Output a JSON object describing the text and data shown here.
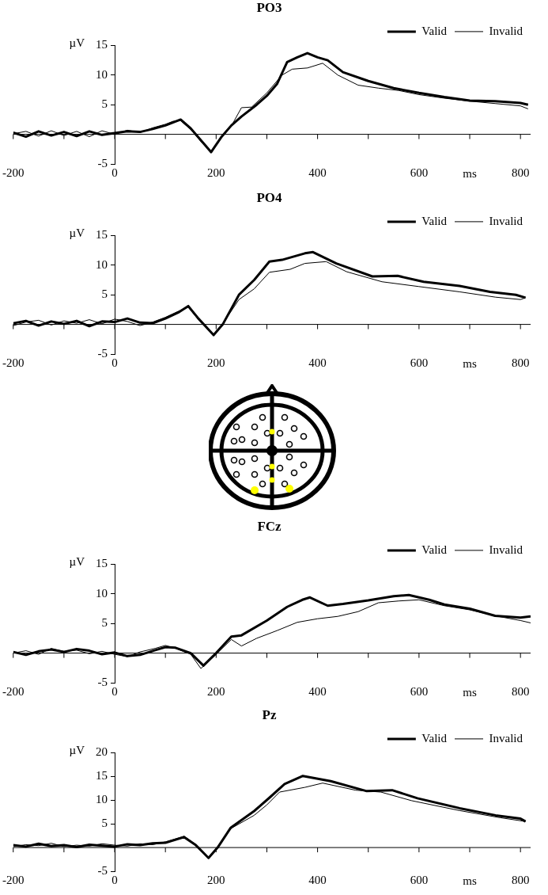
{
  "chart_data": [
    {
      "type": "line",
      "title": "PO3",
      "xlabel": "ms",
      "ylabel": "µV",
      "xlim": [
        -200,
        820
      ],
      "xticks": [
        -200,
        {
          "value": -100,
          "label": null
        },
        0,
        {
          "value": 100,
          "label": null
        },
        200,
        {
          "value": 300,
          "label": null
        },
        400,
        {
          "value": 500,
          "label": null
        },
        600,
        {
          "value": 700,
          "label": null
        },
        800
      ],
      "ylim": [
        -5,
        15
      ],
      "yticks": [
        -5,
        5,
        10,
        15
      ],
      "legend": "top right",
      "series": [
        {
          "name": "Valid",
          "color": "#000000",
          "x": [
            -200,
            -175,
            -150,
            -125,
            -100,
            -75,
            -50,
            -25,
            0,
            25,
            50,
            75,
            100,
            115,
            130,
            150,
            175,
            190,
            210,
            230,
            250,
            280,
            300,
            320,
            340,
            360,
            380,
            400,
            420,
            450,
            500,
            550,
            600,
            650,
            700,
            750,
            800,
            815
          ],
          "values": [
            0.3,
            -0.4,
            0.5,
            -0.2,
            0.4,
            -0.3,
            0.5,
            -0.1,
            0.2,
            0.5,
            0.4,
            0.9,
            1.5,
            2.0,
            2.5,
            1.0,
            -1.5,
            -3.0,
            -0.5,
            1.5,
            3.0,
            5.0,
            6.5,
            8.5,
            12.2,
            13.0,
            13.7,
            13.0,
            12.5,
            10.5,
            9.0,
            7.8,
            7.0,
            6.3,
            5.7,
            5.6,
            5.3,
            5.0
          ]
        },
        {
          "name": "Invalid",
          "color": "#000000",
          "x": [
            -200,
            -175,
            -150,
            -125,
            -100,
            -75,
            -50,
            -25,
            0,
            25,
            50,
            75,
            100,
            115,
            130,
            150,
            175,
            190,
            210,
            230,
            250,
            270,
            300,
            330,
            350,
            380,
            410,
            440,
            480,
            520,
            560,
            600,
            650,
            700,
            750,
            800,
            815
          ],
          "values": [
            0.1,
            0.5,
            -0.3,
            0.6,
            -0.2,
            0.5,
            -0.4,
            0.6,
            0.0,
            0.7,
            0.3,
            1.1,
            1.7,
            2.2,
            2.3,
            0.8,
            -1.7,
            -3.0,
            -0.6,
            1.4,
            4.5,
            4.6,
            7.0,
            10.0,
            11.0,
            11.2,
            12.0,
            10.0,
            8.3,
            7.8,
            7.4,
            6.7,
            6.1,
            5.6,
            5.2,
            4.8,
            4.3
          ]
        }
      ]
    },
    {
      "type": "line",
      "title": "PO4",
      "xlabel": "ms",
      "ylabel": "µV",
      "xlim": [
        -200,
        820
      ],
      "xticks": [
        -200,
        {
          "value": -100,
          "label": null
        },
        0,
        {
          "value": 100,
          "label": null
        },
        200,
        {
          "value": 300,
          "label": null
        },
        400,
        {
          "value": 500,
          "label": null
        },
        600,
        {
          "value": 700,
          "label": null
        },
        800
      ],
      "ylim": [
        -5,
        15
      ],
      "yticks": [
        -5,
        5,
        10,
        15
      ],
      "legend": "top right",
      "series": [
        {
          "name": "Valid",
          "color": "#000000",
          "x": [
            -200,
            -175,
            -150,
            -125,
            -100,
            -75,
            -50,
            -25,
            0,
            25,
            50,
            75,
            100,
            125,
            145,
            165,
            195,
            213,
            245,
            275,
            305,
            330,
            375,
            391,
            437,
            508,
            558,
            609,
            680,
            740,
            791,
            810
          ],
          "values": [
            0.2,
            0.6,
            -0.2,
            0.5,
            0.1,
            0.6,
            -0.3,
            0.5,
            0.4,
            1.0,
            0.3,
            0.2,
            1.0,
            2.0,
            3.1,
            1.0,
            -1.8,
            0.0,
            5.0,
            7.5,
            10.6,
            10.9,
            12.0,
            12.2,
            10.3,
            8.1,
            8.2,
            7.2,
            6.5,
            5.5,
            5.0,
            4.5
          ]
        },
        {
          "name": "Invalid",
          "color": "#000000",
          "x": [
            -200,
            -175,
            -150,
            -125,
            -100,
            -75,
            -50,
            -25,
            0,
            25,
            50,
            75,
            100,
            125,
            145,
            165,
            195,
            213,
            245,
            275,
            305,
            346,
            375,
            417,
            457,
            527,
            599,
            680,
            751,
            800,
            810
          ],
          "values": [
            -0.2,
            0.4,
            0.7,
            -0.1,
            0.6,
            0.2,
            0.8,
            0.1,
            0.9,
            0.5,
            -0.2,
            0.4,
            1.2,
            2.2,
            2.9,
            0.8,
            -1.7,
            0.1,
            4.2,
            6.0,
            8.8,
            9.3,
            10.3,
            10.6,
            8.9,
            7.2,
            6.4,
            5.5,
            4.6,
            4.2,
            4.5
          ]
        }
      ]
    },
    {
      "type": "line",
      "title": "FCz",
      "xlabel": "ms",
      "ylabel": "µV",
      "xlim": [
        -200,
        820
      ],
      "xticks": [
        -200,
        {
          "value": -100,
          "label": null
        },
        0,
        {
          "value": 100,
          "label": null
        },
        200,
        {
          "value": 300,
          "label": null
        },
        400,
        {
          "value": 500,
          "label": null
        },
        600,
        {
          "value": 700,
          "label": null
        },
        800
      ],
      "ylim": [
        -5,
        15
      ],
      "yticks": [
        -5,
        5,
        10,
        15
      ],
      "legend": "top right",
      "series": [
        {
          "name": "Valid",
          "color": "#000000",
          "x": [
            -200,
            -175,
            -150,
            -125,
            -100,
            -75,
            -50,
            -25,
            0,
            25,
            50,
            80,
            100,
            120,
            150,
            175,
            200,
            230,
            250,
            300,
            340,
            370,
            385,
            420,
            450,
            500,
            550,
            580,
            620,
            650,
            700,
            750,
            800,
            820
          ],
          "values": [
            0.2,
            -0.3,
            0.3,
            0.6,
            0.2,
            0.7,
            0.4,
            -0.2,
            0.1,
            -0.5,
            -0.3,
            0.5,
            1.0,
            0.9,
            0.0,
            -2.1,
            0.0,
            2.8,
            3.0,
            5.5,
            7.8,
            9.0,
            9.4,
            8.0,
            8.3,
            8.9,
            9.6,
            9.8,
            9.0,
            8.2,
            7.5,
            6.3,
            6.0,
            6.2
          ]
        },
        {
          "name": "Invalid",
          "color": "#000000",
          "x": [
            -200,
            -175,
            -150,
            -125,
            -100,
            -75,
            -50,
            -25,
            0,
            25,
            50,
            80,
            100,
            120,
            150,
            170,
            200,
            230,
            250,
            280,
            320,
            360,
            400,
            440,
            480,
            520,
            560,
            600,
            650,
            700,
            750,
            800,
            820
          ],
          "values": [
            0.0,
            0.4,
            -0.2,
            0.8,
            0.3,
            0.5,
            -0.1,
            0.3,
            -0.2,
            -0.6,
            0.2,
            0.8,
            1.3,
            0.8,
            -0.2,
            -2.6,
            -0.2,
            2.3,
            1.2,
            2.5,
            3.8,
            5.2,
            5.8,
            6.2,
            7.0,
            8.5,
            8.8,
            9.0,
            8.0,
            7.3,
            6.3,
            5.5,
            5.1
          ]
        }
      ]
    },
    {
      "type": "line",
      "title": "Pz",
      "xlabel": "ms",
      "ylabel": "µV",
      "xlim": [
        -200,
        820
      ],
      "xticks": [
        -200,
        {
          "value": -100,
          "label": null
        },
        0,
        {
          "value": 100,
          "label": null
        },
        200,
        {
          "value": 300,
          "label": null
        },
        400,
        {
          "value": 500,
          "label": null
        },
        600,
        {
          "value": 700,
          "label": null
        },
        800
      ],
      "ylim": [
        -5,
        20
      ],
      "yticks": [
        -5,
        5,
        10,
        15,
        20
      ],
      "legend": "top right",
      "series": [
        {
          "name": "Valid",
          "color": "#000000",
          "x": [
            -200,
            -175,
            -150,
            -125,
            -100,
            -75,
            -50,
            -25,
            0,
            25,
            50,
            75,
            100,
            137,
            160,
            185,
            203,
            229,
            275,
            305,
            335,
            371,
            426,
            497,
            547,
            597,
            680,
            751,
            800,
            810
          ],
          "values": [
            0.5,
            0.2,
            0.8,
            0.3,
            0.5,
            0.1,
            0.6,
            0.4,
            0.2,
            0.7,
            0.5,
            0.9,
            1.0,
            2.2,
            0.5,
            -2.2,
            0.0,
            4.2,
            7.7,
            10.5,
            13.4,
            15.1,
            14.0,
            11.9,
            12.1,
            10.4,
            8.3,
            6.8,
            6.1,
            5.5
          ]
        },
        {
          "name": "Invalid",
          "color": "#000000",
          "x": [
            -200,
            -175,
            -150,
            -125,
            -100,
            -75,
            -50,
            -25,
            0,
            25,
            50,
            75,
            100,
            137,
            160,
            185,
            203,
            229,
            275,
            300,
            325,
            375,
            410,
            475,
            525,
            585,
            680,
            760,
            810
          ],
          "values": [
            0.2,
            0.6,
            0.4,
            0.9,
            0.2,
            0.5,
            0.3,
            0.8,
            0.5,
            0.3,
            0.8,
            0.6,
            1.2,
            2.4,
            0.6,
            -2.1,
            0.2,
            4.0,
            6.8,
            9.0,
            11.7,
            12.7,
            13.6,
            12.1,
            11.7,
            9.9,
            7.8,
            6.3,
            5.5
          ]
        }
      ]
    }
  ]
}
